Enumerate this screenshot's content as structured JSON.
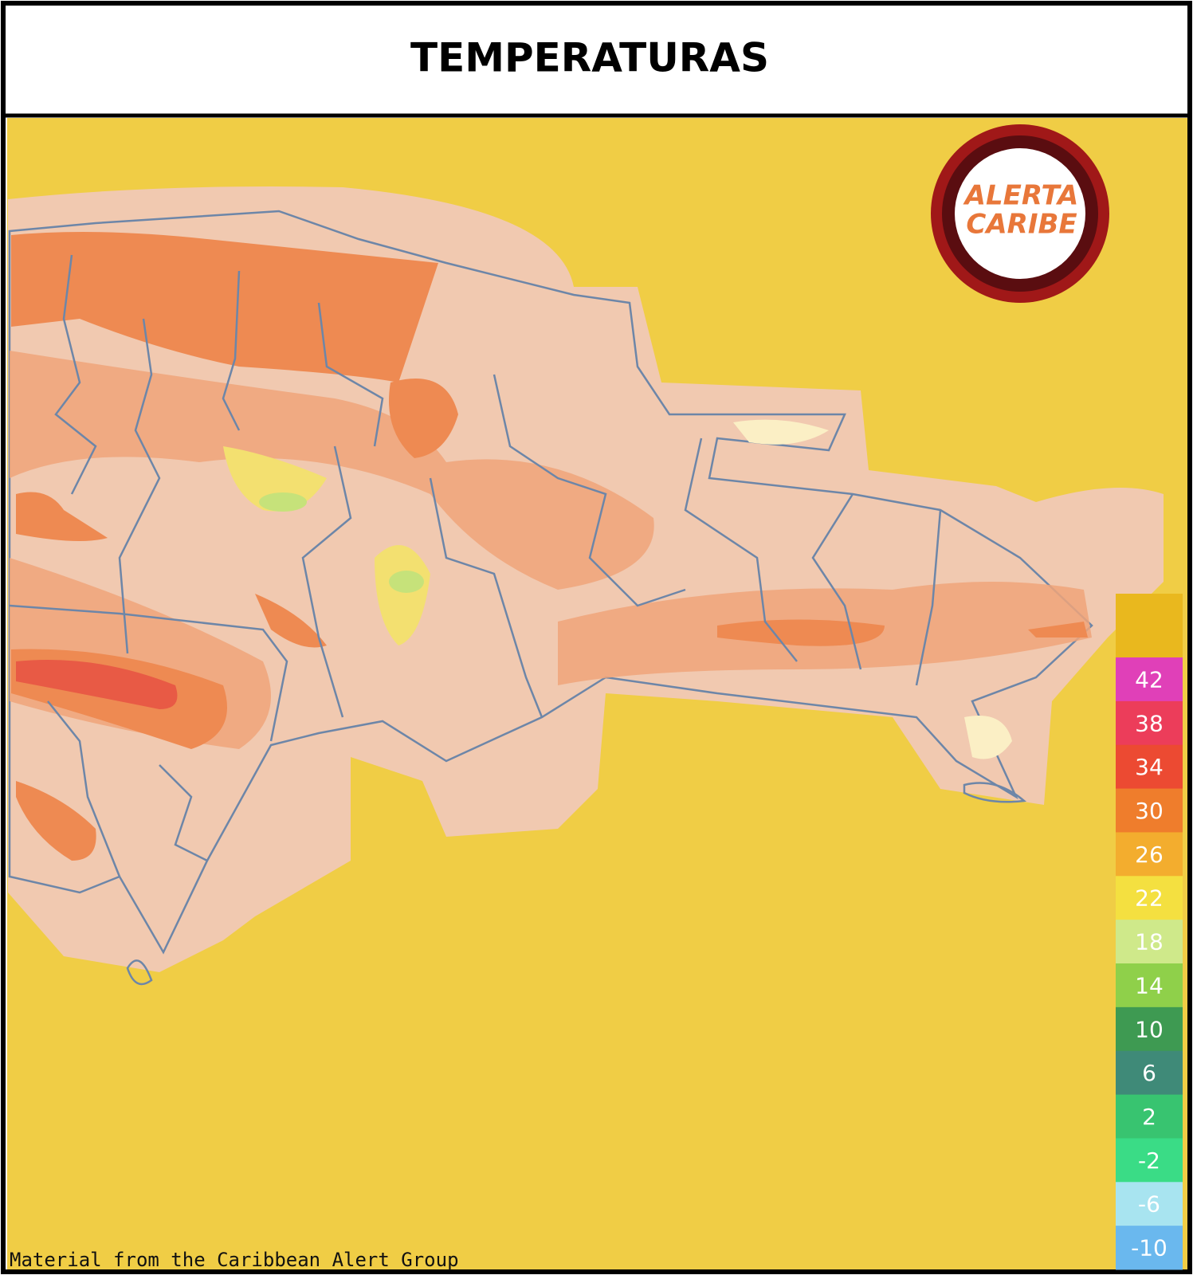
{
  "header": {
    "title": "TEMPERATURAS"
  },
  "logo": {
    "line1": "ALERTA",
    "line2": "CARIBE"
  },
  "legend": {
    "labels": [
      42,
      38,
      34,
      30,
      26,
      22,
      18,
      14,
      10,
      6,
      2,
      -2,
      -6,
      -10
    ]
  },
  "footer": {
    "credit": "Material from the Caribbean Alert Group"
  }
}
